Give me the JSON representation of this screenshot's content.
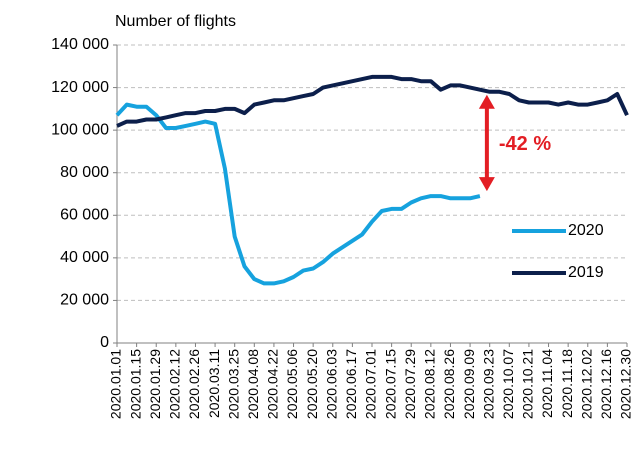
{
  "chart_data": {
    "type": "line",
    "y_label": "Number of flights",
    "x": [
      "2020.01.01",
      "2020.01.08",
      "2020.01.15",
      "2020.01.22",
      "2020.01.29",
      "2020.02.05",
      "2020.02.12",
      "2020.02.19",
      "2020.02.26",
      "2020.03.04",
      "2020.03.11",
      "2020.03.18",
      "2020.03.25",
      "2020.04.01",
      "2020.04.08",
      "2020.04.15",
      "2020.04.22",
      "2020.04.29",
      "2020.05.06",
      "2020.05.13",
      "2020.05.20",
      "2020.05.27",
      "2020.06.03",
      "2020.06.10",
      "2020.06.17",
      "2020.06.24",
      "2020.07.01",
      "2020.07.08",
      "2020.07.15",
      "2020.07.22",
      "2020.07.29",
      "2020.08.05",
      "2020.08.12",
      "2020.08.19",
      "2020.08.26",
      "2020.09.02",
      "2020.09.09",
      "2020.09.16",
      "2020.09.23",
      "2020.09.30",
      "2020.10.07",
      "2020.10.14",
      "2020.10.21",
      "2020.10.28",
      "2020.11.04",
      "2020.11.11",
      "2020.11.18",
      "2020.11.25",
      "2020.12.02",
      "2020.12.09",
      "2020.12.16",
      "2020.12.23",
      "2020.12.30"
    ],
    "series": [
      {
        "name": "2020",
        "color": "#16a2de",
        "values": [
          107000,
          112000,
          111000,
          111000,
          107000,
          101000,
          101000,
          102000,
          103000,
          104000,
          103000,
          82000,
          50000,
          36000,
          30000,
          28000,
          28000,
          29000,
          31000,
          34000,
          35000,
          38000,
          42000,
          45000,
          48000,
          51000,
          57000,
          62000,
          63000,
          63000,
          66000,
          68000,
          69000,
          69000,
          68000,
          68000,
          68000,
          69000,
          null,
          null,
          null,
          null,
          null,
          null,
          null,
          null,
          null,
          null,
          null,
          null,
          null,
          null,
          null
        ]
      },
      {
        "name": "2019",
        "color": "#0c1f4b",
        "values": [
          102000,
          104000,
          104000,
          105000,
          105000,
          106000,
          107000,
          108000,
          108000,
          109000,
          109000,
          110000,
          110000,
          108000,
          112000,
          113000,
          114000,
          114000,
          115000,
          116000,
          117000,
          120000,
          121000,
          122000,
          123000,
          124000,
          125000,
          125000,
          125000,
          124000,
          124000,
          123000,
          123000,
          119000,
          121000,
          121000,
          120000,
          119000,
          118000,
          118000,
          117000,
          114000,
          113000,
          113000,
          113000,
          112000,
          113000,
          112000,
          112000,
          113000,
          114000,
          117000,
          107000
        ]
      }
    ],
    "ylim": [
      0,
      140000
    ],
    "yticks": [
      0,
      {
        "value": 20000,
        "label": "20 000"
      },
      {
        "value": 40000,
        "label": "40 000"
      },
      {
        "value": 60000,
        "label": "60 000"
      },
      {
        "value": 80000,
        "label": "80 000"
      },
      {
        "value": 100000,
        "label": "100 000"
      },
      {
        "value": 120000,
        "label": "120 000"
      },
      {
        "value": 140000,
        "label": "140 000"
      }
    ],
    "xticks": [
      "2020.01.01",
      "2020.01.15",
      "2020.01.29",
      "2020.02.12",
      "2020.02.26",
      "2020.03.11",
      "2020.03.25",
      "2020.04.08",
      "2020.04.22",
      "2020.05.06",
      "2020.05.20",
      "2020.06.03",
      "2020.06.17",
      "2020.07.01",
      "2020.07.15",
      "2020.07.29",
      "2020.08.12",
      "2020.08.26",
      "2020.09.09",
      "2020.09.23",
      "2020.10.07",
      "2020.10.21",
      "2020.11.04",
      "2020.11.18",
      "2020.12.02",
      "2020.12.16",
      "2020.12.30"
    ],
    "grid": true,
    "legend": "right",
    "annotation": {
      "text": "-42 %",
      "color": "#e31e24"
    }
  }
}
